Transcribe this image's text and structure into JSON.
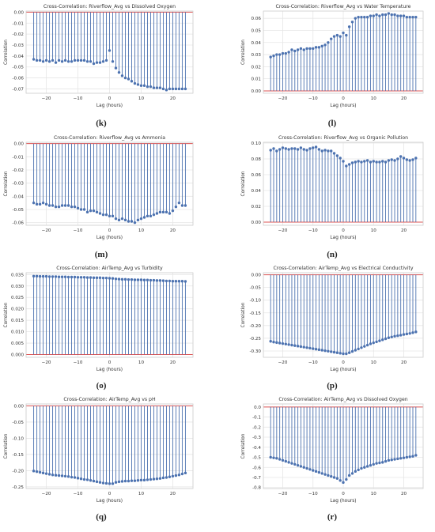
{
  "colors": {
    "stem": "#4c72b0",
    "baseline": "#dd5555",
    "grid": "#e6e6e6",
    "frame": "#cccccc"
  },
  "chart_data": [
    {
      "label": "(k)",
      "type": "stem",
      "title": "Cross-Correlation: Riverflow_Avg vs Dissolved Oxygen",
      "xlabel": "Lag (hours)",
      "ylabel": "Correlation",
      "x": [
        -24,
        -23,
        -22,
        -21,
        -20,
        -19,
        -18,
        -17,
        -16,
        -15,
        -14,
        -13,
        -12,
        -11,
        -10,
        -9,
        -8,
        -7,
        -6,
        -5,
        -4,
        -3,
        -2,
        -1,
        0,
        1,
        2,
        3,
        4,
        5,
        6,
        7,
        8,
        9,
        10,
        11,
        12,
        13,
        14,
        15,
        16,
        17,
        18,
        19,
        20,
        21,
        22,
        23,
        24
      ],
      "values": [
        -0.043,
        -0.044,
        -0.044,
        -0.045,
        -0.044,
        -0.045,
        -0.044,
        -0.046,
        -0.044,
        -0.045,
        -0.044,
        -0.045,
        -0.045,
        -0.044,
        -0.044,
        -0.044,
        -0.044,
        -0.045,
        -0.045,
        -0.047,
        -0.046,
        -0.046,
        -0.045,
        -0.044,
        -0.035,
        -0.045,
        -0.051,
        -0.055,
        -0.058,
        -0.06,
        -0.061,
        -0.063,
        -0.065,
        -0.066,
        -0.067,
        -0.067,
        -0.068,
        -0.068,
        -0.069,
        -0.069,
        -0.069,
        -0.07,
        -0.071,
        -0.07,
        -0.07,
        -0.07,
        -0.07,
        -0.07,
        -0.07
      ],
      "ylim": [
        -0.074,
        0.001
      ],
      "yticks": [
        "0.00",
        "-0.01",
        "-0.02",
        "-0.03",
        "-0.04",
        "-0.05",
        "-0.06",
        "-0.07"
      ],
      "ytick_values": [
        0,
        -0.01,
        -0.02,
        -0.03,
        -0.04,
        -0.05,
        -0.06,
        -0.07
      ],
      "xticks": [
        "-20",
        "-10",
        "0",
        "10",
        "20"
      ],
      "xtick_values": [
        -20,
        -10,
        0,
        10,
        20
      ],
      "grid": true
    },
    {
      "label": "(l)",
      "type": "stem",
      "title": "Cross-Correlation: Riverflow_Avg vs Water Temperature",
      "xlabel": "Lag (hours)",
      "ylabel": "Correlation",
      "x": [
        -24,
        -23,
        -22,
        -21,
        -20,
        -19,
        -18,
        -17,
        -16,
        -15,
        -14,
        -13,
        -12,
        -11,
        -10,
        -9,
        -8,
        -7,
        -6,
        -5,
        -4,
        -3,
        -2,
        -1,
        0,
        1,
        2,
        3,
        4,
        5,
        6,
        7,
        8,
        9,
        10,
        11,
        12,
        13,
        14,
        15,
        16,
        17,
        18,
        19,
        20,
        21,
        22,
        23,
        24
      ],
      "values": [
        0.028,
        0.029,
        0.03,
        0.03,
        0.031,
        0.031,
        0.032,
        0.034,
        0.033,
        0.034,
        0.035,
        0.034,
        0.035,
        0.035,
        0.035,
        0.036,
        0.036,
        0.037,
        0.038,
        0.04,
        0.043,
        0.045,
        0.046,
        0.045,
        0.048,
        0.046,
        0.053,
        0.057,
        0.06,
        0.061,
        0.061,
        0.061,
        0.061,
        0.062,
        0.062,
        0.063,
        0.062,
        0.063,
        0.063,
        0.064,
        0.063,
        0.063,
        0.062,
        0.062,
        0.062,
        0.061,
        0.061,
        0.061,
        0.061
      ],
      "ylim": [
        -0.002,
        0.066
      ],
      "yticks": [
        "0.00",
        "0.01",
        "0.02",
        "0.03",
        "0.04",
        "0.05",
        "0.06"
      ],
      "ytick_values": [
        0,
        0.01,
        0.02,
        0.03,
        0.04,
        0.05,
        0.06
      ],
      "xticks": [
        "-20",
        "-10",
        "0",
        "10",
        "20"
      ],
      "xtick_values": [
        -20,
        -10,
        0,
        10,
        20
      ],
      "grid": true
    },
    {
      "label": "(m)",
      "type": "stem",
      "title": "Cross-Correlation: Riverflow_Avg vs Ammonia",
      "xlabel": "Lag (hours)",
      "ylabel": "Correlation",
      "x": [
        -24,
        -23,
        -22,
        -21,
        -20,
        -19,
        -18,
        -17,
        -16,
        -15,
        -14,
        -13,
        -12,
        -11,
        -10,
        -9,
        -8,
        -7,
        -6,
        -5,
        -4,
        -3,
        -2,
        -1,
        0,
        1,
        2,
        3,
        4,
        5,
        6,
        7,
        8,
        9,
        10,
        11,
        12,
        13,
        14,
        15,
        16,
        17,
        18,
        19,
        20,
        21,
        22,
        23,
        24
      ],
      "values": [
        -0.045,
        -0.046,
        -0.046,
        -0.045,
        -0.046,
        -0.047,
        -0.047,
        -0.048,
        -0.048,
        -0.047,
        -0.047,
        -0.047,
        -0.048,
        -0.048,
        -0.049,
        -0.05,
        -0.05,
        -0.052,
        -0.051,
        -0.051,
        -0.052,
        -0.053,
        -0.054,
        -0.054,
        -0.055,
        -0.055,
        -0.057,
        -0.058,
        -0.057,
        -0.058,
        -0.059,
        -0.059,
        -0.06,
        -0.058,
        -0.057,
        -0.056,
        -0.055,
        -0.055,
        -0.054,
        -0.053,
        -0.052,
        -0.052,
        -0.052,
        -0.053,
        -0.051,
        -0.048,
        -0.045,
        -0.047,
        -0.047
      ],
      "ylim": [
        -0.062,
        0.001
      ],
      "yticks": [
        "0.00",
        "-0.01",
        "-0.02",
        "-0.03",
        "-0.04",
        "-0.05",
        "-0.06"
      ],
      "ytick_values": [
        0,
        -0.01,
        -0.02,
        -0.03,
        -0.04,
        -0.05,
        -0.06
      ],
      "xticks": [
        "-20",
        "-10",
        "0",
        "10",
        "20"
      ],
      "xtick_values": [
        -20,
        -10,
        0,
        10,
        20
      ],
      "grid": true
    },
    {
      "label": "(n)",
      "type": "stem",
      "title": "Cross-Correlation: Riverflow_Avg vs Organic Pollution",
      "xlabel": "Lag (hours)",
      "ylabel": "Correlation",
      "x": [
        -24,
        -23,
        -22,
        -21,
        -20,
        -19,
        -18,
        -17,
        -16,
        -15,
        -14,
        -13,
        -12,
        -11,
        -10,
        -9,
        -8,
        -7,
        -6,
        -5,
        -4,
        -3,
        -2,
        -1,
        0,
        1,
        2,
        3,
        4,
        5,
        6,
        7,
        8,
        9,
        10,
        11,
        12,
        13,
        14,
        15,
        16,
        17,
        18,
        19,
        20,
        21,
        22,
        23,
        24
      ],
      "values": [
        0.091,
        0.093,
        0.09,
        0.092,
        0.094,
        0.093,
        0.092,
        0.093,
        0.093,
        0.092,
        0.094,
        0.092,
        0.091,
        0.093,
        0.094,
        0.095,
        0.092,
        0.09,
        0.091,
        0.09,
        0.09,
        0.087,
        0.084,
        0.081,
        0.077,
        0.071,
        0.073,
        0.075,
        0.076,
        0.077,
        0.076,
        0.077,
        0.078,
        0.076,
        0.077,
        0.076,
        0.076,
        0.077,
        0.076,
        0.078,
        0.079,
        0.078,
        0.08,
        0.083,
        0.081,
        0.079,
        0.078,
        0.079,
        0.081
      ],
      "ylim": [
        -0.004,
        0.101
      ],
      "yticks": [
        "0.00",
        "0.02",
        "0.04",
        "0.06",
        "0.08",
        "0.10"
      ],
      "ytick_values": [
        0,
        0.02,
        0.04,
        0.06,
        0.08,
        0.1
      ],
      "xticks": [
        "-20",
        "-10",
        "0",
        "10",
        "20"
      ],
      "xtick_values": [
        -20,
        -10,
        0,
        10,
        20
      ],
      "grid": true
    },
    {
      "label": "(o)",
      "type": "stem",
      "title": "Cross-Correlation: AirTemp_Avg vs Turbidity",
      "xlabel": "Lag (hours)",
      "ylabel": "Correlation",
      "x": [
        -24,
        -23,
        -22,
        -21,
        -20,
        -19,
        -18,
        -17,
        -16,
        -15,
        -14,
        -13,
        -12,
        -11,
        -10,
        -9,
        -8,
        -7,
        -6,
        -5,
        -4,
        -3,
        -2,
        -1,
        0,
        1,
        2,
        3,
        4,
        5,
        6,
        7,
        8,
        9,
        10,
        11,
        12,
        13,
        14,
        15,
        16,
        17,
        18,
        19,
        20,
        21,
        22,
        23,
        24
      ],
      "values": [
        0.0343,
        0.0343,
        0.0342,
        0.0342,
        0.0342,
        0.0341,
        0.0341,
        0.0341,
        0.034,
        0.034,
        0.034,
        0.0339,
        0.0339,
        0.0339,
        0.0338,
        0.0338,
        0.0338,
        0.0337,
        0.0337,
        0.0336,
        0.0336,
        0.0336,
        0.0335,
        0.0335,
        0.0334,
        0.0333,
        0.0331,
        0.033,
        0.0329,
        0.0329,
        0.0328,
        0.0328,
        0.0327,
        0.0327,
        0.0327,
        0.0326,
        0.0326,
        0.0325,
        0.0325,
        0.0324,
        0.0324,
        0.0323,
        0.0322,
        0.0322,
        0.0321,
        0.0321,
        0.0321,
        0.0321,
        0.032
      ],
      "ylim": [
        -0.0012,
        0.0358
      ],
      "yticks": [
        "0.000",
        "0.005",
        "0.010",
        "0.015",
        "0.020",
        "0.025",
        "0.030",
        "0.035"
      ],
      "ytick_values": [
        0,
        0.005,
        0.01,
        0.015,
        0.02,
        0.025,
        0.03,
        0.035
      ],
      "xticks": [
        "-20",
        "-10",
        "0",
        "10",
        "20"
      ],
      "xtick_values": [
        -20,
        -10,
        0,
        10,
        20
      ],
      "grid": true
    },
    {
      "label": "(p)",
      "type": "stem",
      "title": "Cross-Correlation: AirTemp_Avg vs Electrical Conductivity",
      "xlabel": "Lag (hours)",
      "ylabel": "Correlation",
      "x": [
        -24,
        -23,
        -22,
        -21,
        -20,
        -19,
        -18,
        -17,
        -16,
        -15,
        -14,
        -13,
        -12,
        -11,
        -10,
        -9,
        -8,
        -7,
        -6,
        -5,
        -4,
        -3,
        -2,
        -1,
        0,
        1,
        2,
        3,
        4,
        5,
        6,
        7,
        8,
        9,
        10,
        11,
        12,
        13,
        14,
        15,
        16,
        17,
        18,
        19,
        20,
        21,
        22,
        23,
        24
      ],
      "values": [
        -0.262,
        -0.265,
        -0.267,
        -0.269,
        -0.271,
        -0.273,
        -0.275,
        -0.277,
        -0.279,
        -0.281,
        -0.283,
        -0.285,
        -0.287,
        -0.289,
        -0.291,
        -0.293,
        -0.295,
        -0.297,
        -0.299,
        -0.301,
        -0.303,
        -0.305,
        -0.307,
        -0.309,
        -0.311,
        -0.311,
        -0.307,
        -0.302,
        -0.297,
        -0.292,
        -0.287,
        -0.282,
        -0.277,
        -0.272,
        -0.268,
        -0.264,
        -0.26,
        -0.256,
        -0.252,
        -0.248,
        -0.245,
        -0.242,
        -0.24,
        -0.238,
        -0.235,
        -0.233,
        -0.231,
        -0.228,
        -0.225
      ],
      "ylim": [
        -0.325,
        0.008
      ],
      "yticks": [
        "0.00",
        "-0.05",
        "-0.10",
        "-0.15",
        "-0.20",
        "-0.25",
        "-0.30"
      ],
      "ytick_values": [
        0,
        -0.05,
        -0.1,
        -0.15,
        -0.2,
        -0.25,
        -0.3
      ],
      "xticks": [
        "-20",
        "-10",
        "0",
        "10",
        "20"
      ],
      "xtick_values": [
        -20,
        -10,
        0,
        10,
        20
      ],
      "grid": true
    },
    {
      "label": "(q)",
      "type": "stem",
      "title": "Cross-Correlation: AirTemp_Avg vs pH",
      "xlabel": "Lag (hours)",
      "ylabel": "Correlation",
      "x": [
        -24,
        -23,
        -22,
        -21,
        -20,
        -19,
        -18,
        -17,
        -16,
        -15,
        -14,
        -13,
        -12,
        -11,
        -10,
        -9,
        -8,
        -7,
        -6,
        -5,
        -4,
        -3,
        -2,
        -1,
        0,
        1,
        2,
        3,
        4,
        5,
        6,
        7,
        8,
        9,
        10,
        11,
        12,
        13,
        14,
        15,
        16,
        17,
        18,
        19,
        20,
        21,
        22,
        23,
        24
      ],
      "values": [
        -0.201,
        -0.203,
        -0.205,
        -0.207,
        -0.209,
        -0.211,
        -0.213,
        -0.214,
        -0.215,
        -0.216,
        -0.217,
        -0.218,
        -0.22,
        -0.221,
        -0.223,
        -0.225,
        -0.227,
        -0.228,
        -0.23,
        -0.232,
        -0.234,
        -0.236,
        -0.238,
        -0.239,
        -0.24,
        -0.24,
        -0.236,
        -0.234,
        -0.233,
        -0.232,
        -0.232,
        -0.231,
        -0.231,
        -0.23,
        -0.229,
        -0.229,
        -0.228,
        -0.227,
        -0.226,
        -0.225,
        -0.224,
        -0.222,
        -0.221,
        -0.219,
        -0.217,
        -0.215,
        -0.213,
        -0.21,
        -0.207
      ],
      "ylim": [
        -0.255,
        0.006
      ],
      "yticks": [
        "0.00",
        "-0.05",
        "-0.10",
        "-0.15",
        "-0.20",
        "-0.25"
      ],
      "ytick_values": [
        0,
        -0.05,
        -0.1,
        -0.15,
        -0.2,
        -0.25
      ],
      "xticks": [
        "-20",
        "-10",
        "0",
        "10",
        "20"
      ],
      "xtick_values": [
        -20,
        -10,
        0,
        10,
        20
      ],
      "grid": true
    },
    {
      "label": "(r)",
      "type": "stem",
      "title": "Cross-Correlation: AirTemp_Avg vs Dissolved Oxygen",
      "xlabel": "Lag (hours)",
      "ylabel": "Correlation",
      "x": [
        -24,
        -23,
        -22,
        -21,
        -20,
        -19,
        -18,
        -17,
        -16,
        -15,
        -14,
        -13,
        -12,
        -11,
        -10,
        -9,
        -8,
        -7,
        -6,
        -5,
        -4,
        -3,
        -2,
        -1,
        0,
        1,
        2,
        3,
        4,
        5,
        6,
        7,
        8,
        9,
        10,
        11,
        12,
        13,
        14,
        15,
        16,
        17,
        18,
        19,
        20,
        21,
        22,
        23,
        24
      ],
      "values": [
        -0.5,
        -0.505,
        -0.51,
        -0.52,
        -0.53,
        -0.54,
        -0.55,
        -0.56,
        -0.57,
        -0.58,
        -0.59,
        -0.6,
        -0.61,
        -0.62,
        -0.63,
        -0.64,
        -0.65,
        -0.66,
        -0.67,
        -0.68,
        -0.69,
        -0.7,
        -0.71,
        -0.73,
        -0.75,
        -0.72,
        -0.68,
        -0.66,
        -0.64,
        -0.625,
        -0.61,
        -0.6,
        -0.59,
        -0.58,
        -0.57,
        -0.56,
        -0.555,
        -0.55,
        -0.54,
        -0.53,
        -0.525,
        -0.52,
        -0.515,
        -0.51,
        -0.505,
        -0.5,
        -0.495,
        -0.49,
        -0.48
      ],
      "ylim": [
        -0.81,
        0.03
      ],
      "yticks": [
        "0.0",
        "-0.1",
        "-0.2",
        "-0.3",
        "-0.4",
        "-0.5",
        "-0.6",
        "-0.7",
        "-0.8"
      ],
      "ytick_values": [
        0,
        -0.1,
        -0.2,
        -0.3,
        -0.4,
        -0.5,
        -0.6,
        -0.7,
        -0.8
      ],
      "xticks": [
        "-20",
        "-10",
        "0",
        "10",
        "20"
      ],
      "xtick_values": [
        -20,
        -10,
        0,
        10,
        20
      ],
      "grid": true
    }
  ]
}
